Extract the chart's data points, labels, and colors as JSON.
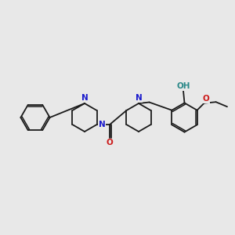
{
  "background_color": "#e8e8e8",
  "bond_color": "#1a1a1a",
  "N_color": "#1a1acc",
  "O_color": "#cc1a1a",
  "OH_color": "#2a8888",
  "line_width": 1.3,
  "figsize": [
    3.0,
    3.0
  ],
  "dpi": 100,
  "xlim": [
    0,
    10
  ],
  "ylim": [
    2,
    8
  ]
}
